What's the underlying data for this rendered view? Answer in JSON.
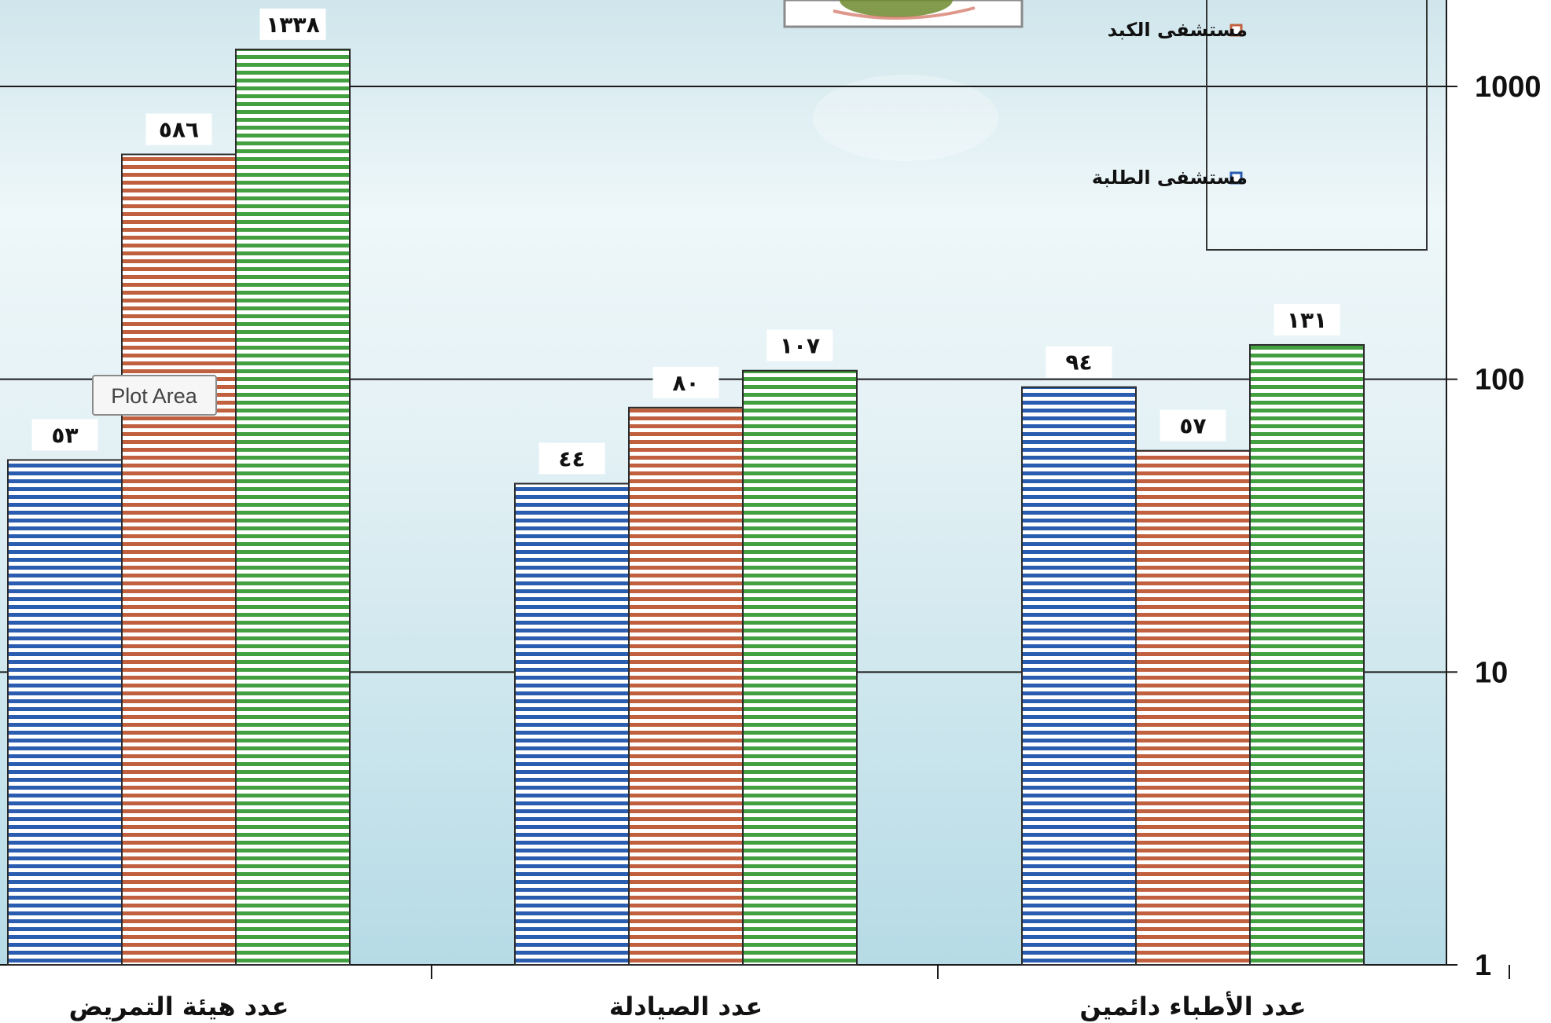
{
  "chart_data": {
    "type": "bar",
    "y_scale": "log",
    "ylim": [
      1,
      1000
    ],
    "y_ticks": [
      "1",
      "10",
      "100",
      "1000"
    ],
    "categories": [
      "عدد هيئة التمريض",
      "عدد الصيادلة",
      "عدد الأطباء دائمين"
    ],
    "series": [
      {
        "name": "مستشفى الطلبة",
        "color": "#2a5db0",
        "values": [
          53,
          44,
          94
        ],
        "labels": [
          "٥٣",
          "٤٤",
          "٩٤"
        ]
      },
      {
        "name": "",
        "color": "#c0603f",
        "values": [
          586,
          80,
          57
        ],
        "labels": [
          "٥٨٦",
          "٨٠",
          "٥٧"
        ]
      },
      {
        "name": "",
        "color": "#43a040",
        "values": [
          1338,
          107,
          131
        ],
        "labels": [
          "١٣٣٨",
          "١٠٧",
          "١٣١"
        ]
      }
    ],
    "legend": {
      "position": "top-right",
      "entries": [
        {
          "label": "مستشفى الكبد",
          "color": "#c0603f"
        },
        {
          "label": "مستشفى الطلبة",
          "color": "#2a5db0"
        }
      ]
    },
    "grid": true
  },
  "tooltip": {
    "text": "Plot Area"
  }
}
